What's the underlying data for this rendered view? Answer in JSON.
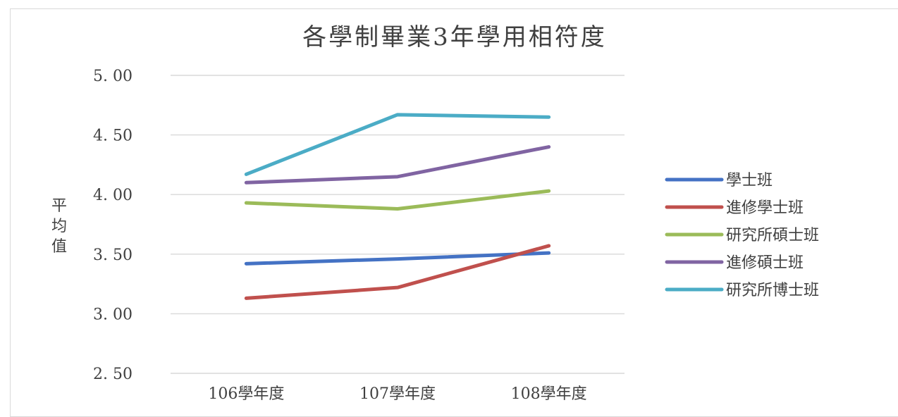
{
  "chart_data": {
    "type": "line",
    "title": "各學制畢業3年學用相符度",
    "ylabel": "平均值",
    "xlabel": "",
    "categories": [
      "106學年度",
      "107學年度",
      "108學年度"
    ],
    "yticks": [
      "5. 00",
      "4. 50",
      "4. 00",
      "3. 50",
      "3. 00",
      "2. 50"
    ],
    "ylim": [
      2.5,
      5.0
    ],
    "grid": true,
    "legend_position": "right",
    "series": [
      {
        "name": "學士班",
        "color": "#4472C4",
        "values": [
          3.42,
          3.46,
          3.51
        ]
      },
      {
        "name": "進修學士班",
        "color": "#C0504D",
        "values": [
          3.13,
          3.22,
          3.57
        ]
      },
      {
        "name": "研究所碩士班",
        "color": "#9BBB59",
        "values": [
          3.93,
          3.88,
          4.03
        ]
      },
      {
        "name": "進修碩士班",
        "color": "#8064A2",
        "values": [
          4.1,
          4.15,
          4.4
        ]
      },
      {
        "name": "研究所博士班",
        "color": "#4BACC6",
        "values": [
          4.17,
          4.67,
          4.65
        ]
      }
    ]
  }
}
